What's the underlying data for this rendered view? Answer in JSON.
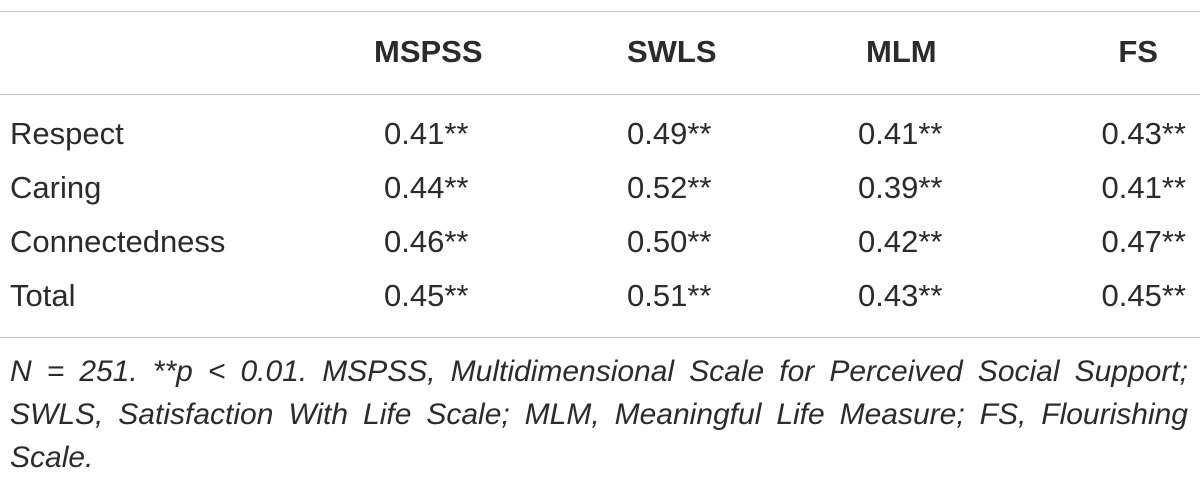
{
  "table": {
    "columns": [
      "MSPSS",
      "SWLS",
      "MLM",
      "FS"
    ],
    "rows": [
      {
        "label": "Respect",
        "values": [
          "0.41**",
          "0.49**",
          "0.41**",
          "0.43**"
        ]
      },
      {
        "label": "Caring",
        "values": [
          "0.44**",
          "0.52**",
          "0.39**",
          "0.41**"
        ]
      },
      {
        "label": "Connectedness",
        "values": [
          "0.46**",
          "0.50**",
          "0.42**",
          "0.47**"
        ]
      },
      {
        "label": "Total",
        "values": [
          "0.45**",
          "0.51**",
          "0.43**",
          "0.45**"
        ]
      }
    ]
  },
  "note": "N = 251. **p < 0.01. MSPSS, Multidimensional Scale for Perceived Social Support; SWLS, Satisfaction With Life Scale; MLM, Meaningful Life Measure; FS, Flourishing Scale."
}
